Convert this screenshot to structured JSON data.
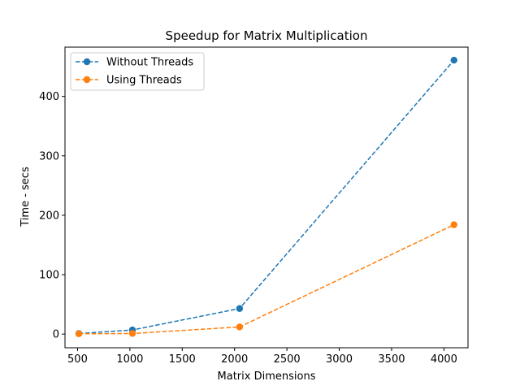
{
  "chart_data": {
    "type": "line",
    "title": "Speedup for Matrix Multiplication",
    "xlabel": "Matrix Dimensions",
    "ylabel": "Time - secs",
    "x": [
      512,
      1024,
      2048,
      4096
    ],
    "xlim": [
      380,
      4230
    ],
    "ylim": [
      -23,
      483
    ],
    "xticks": [
      500,
      1000,
      1500,
      2000,
      2500,
      3000,
      3500,
      4000
    ],
    "yticks": [
      0,
      100,
      200,
      300,
      400
    ],
    "grid": false,
    "legend_position": "upper left",
    "series": [
      {
        "name": "Without Threads",
        "color": "#1f77b4",
        "line_style": "dashed",
        "marker": "circle",
        "values": [
          1,
          7,
          43,
          461
        ]
      },
      {
        "name": "Using Threads",
        "color": "#ff7f0e",
        "line_style": "dashed",
        "marker": "circle",
        "values": [
          0.5,
          1,
          12,
          184
        ]
      }
    ]
  }
}
